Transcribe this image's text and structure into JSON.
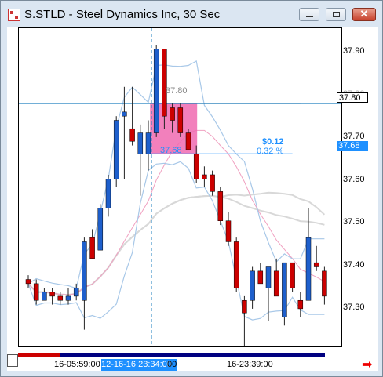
{
  "window": {
    "title": "S.STLD - Steel Dynamics Inc, 30 Sec",
    "close_glyph": "✕"
  },
  "price_axis": {
    "labels": [
      "37.90",
      "37.80",
      "37.70",
      "37.60",
      "37.50",
      "37.40",
      "37.30"
    ],
    "crosshair_tag": "37.80",
    "measure_tag": "37.68"
  },
  "time_axis": {
    "label_left": "16-05:59:00",
    "label_cursor": "12-16-16 23:34:00",
    "label_after_cursor": "00",
    "label_right": "16-23:39:00"
  },
  "measure": {
    "start_label": "37.80",
    "end_label": "37.68",
    "delta": "$0.12",
    "percent": "0.32 %"
  },
  "colors": {
    "up": "#1e5fcc",
    "down": "#cc0000",
    "accent": "#1e90ff",
    "measure_box": "#f06ab0"
  },
  "chart_data": {
    "type": "candlestick",
    "title": "S.STLD - Steel Dynamics Inc, 30 Sec",
    "ylim": [
      37.22,
      37.98
    ],
    "candles": [
      {
        "o": 37.38,
        "h": 37.39,
        "l": 37.36,
        "c": 37.37
      },
      {
        "o": 37.37,
        "h": 37.38,
        "l": 37.32,
        "c": 37.33
      },
      {
        "o": 37.33,
        "h": 37.36,
        "l": 37.33,
        "c": 37.35
      },
      {
        "o": 37.35,
        "h": 37.36,
        "l": 37.32,
        "c": 37.34
      },
      {
        "o": 37.34,
        "h": 37.35,
        "l": 37.32,
        "c": 37.33
      },
      {
        "o": 37.33,
        "h": 37.36,
        "l": 37.32,
        "c": 37.34
      },
      {
        "o": 37.34,
        "h": 37.37,
        "l": 37.33,
        "c": 37.36
      },
      {
        "o": 37.33,
        "h": 37.48,
        "l": 37.26,
        "c": 37.47
      },
      {
        "o": 37.48,
        "h": 37.5,
        "l": 37.43,
        "c": 37.43
      },
      {
        "o": 37.45,
        "h": 37.56,
        "l": 37.45,
        "c": 37.55
      },
      {
        "o": 37.55,
        "h": 37.63,
        "l": 37.53,
        "c": 37.62
      },
      {
        "o": 37.62,
        "h": 37.77,
        "l": 37.6,
        "c": 37.76
      },
      {
        "o": 37.77,
        "h": 37.84,
        "l": 37.62,
        "c": 37.78
      },
      {
        "o": 37.74,
        "h": 37.84,
        "l": 37.7,
        "c": 37.71
      },
      {
        "o": 37.68,
        "h": 37.75,
        "l": 37.58,
        "c": 37.73
      },
      {
        "o": 37.68,
        "h": 37.76,
        "l": 37.64,
        "c": 37.73
      },
      {
        "o": 37.73,
        "h": 37.94,
        "l": 37.72,
        "c": 37.93
      },
      {
        "o": 37.93,
        "h": 37.93,
        "l": 37.74,
        "c": 37.77
      },
      {
        "o": 37.79,
        "h": 37.8,
        "l": 37.73,
        "c": 37.76
      },
      {
        "o": 37.79,
        "h": 37.8,
        "l": 37.72,
        "c": 37.73
      },
      {
        "o": 37.73,
        "h": 37.74,
        "l": 37.69,
        "c": 37.69
      },
      {
        "o": 37.68,
        "h": 37.7,
        "l": 37.61,
        "c": 37.62
      },
      {
        "o": 37.63,
        "h": 37.65,
        "l": 37.6,
        "c": 37.62
      },
      {
        "o": 37.63,
        "h": 37.64,
        "l": 37.58,
        "c": 37.59
      },
      {
        "o": 37.59,
        "h": 37.6,
        "l": 37.51,
        "c": 37.52
      },
      {
        "o": 37.52,
        "h": 37.54,
        "l": 37.46,
        "c": 37.47
      },
      {
        "o": 37.47,
        "h": 37.48,
        "l": 37.35,
        "c": 37.36
      },
      {
        "o": 37.33,
        "h": 37.34,
        "l": 37.22,
        "c": 37.3
      },
      {
        "o": 37.33,
        "h": 37.41,
        "l": 37.31,
        "c": 37.4
      },
      {
        "o": 37.4,
        "h": 37.42,
        "l": 37.37,
        "c": 37.37
      },
      {
        "o": 37.36,
        "h": 37.41,
        "l": 37.28,
        "c": 37.41
      },
      {
        "o": 37.4,
        "h": 37.43,
        "l": 37.34,
        "c": 37.34
      },
      {
        "o": 37.29,
        "h": 37.42,
        "l": 37.27,
        "c": 37.42
      },
      {
        "o": 37.42,
        "h": 37.42,
        "l": 37.35,
        "c": 37.36
      },
      {
        "o": 37.33,
        "h": 37.35,
        "l": 37.29,
        "c": 37.31
      },
      {
        "o": 37.33,
        "h": 37.55,
        "l": 37.33,
        "c": 37.48
      },
      {
        "o": 37.42,
        "h": 37.46,
        "l": 37.4,
        "c": 37.41
      },
      {
        "o": 37.4,
        "h": 37.41,
        "l": 37.32,
        "c": 37.34
      }
    ],
    "crosshair_price": 37.8,
    "measure_from": 37.8,
    "measure_to": 37.68
  }
}
